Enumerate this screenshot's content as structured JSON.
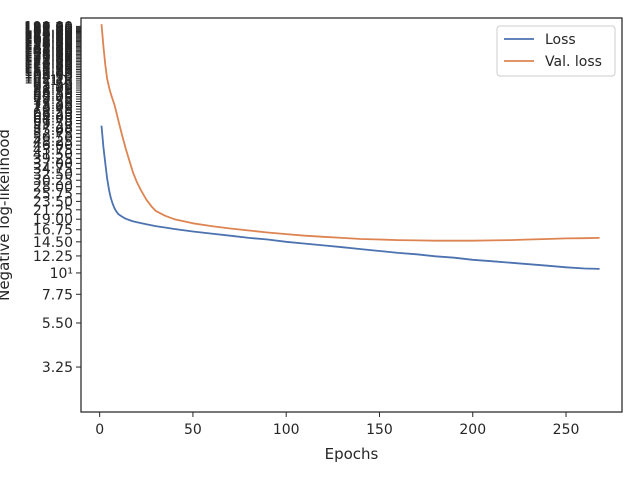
{
  "chart_data": {
    "type": "line",
    "title": "",
    "xlabel": "Epochs",
    "ylabel": "Negative log-likelihood",
    "xlim": [
      -10,
      280
    ],
    "ylim": [
      1.9,
      210
    ],
    "y_scale": "log",
    "x_ticks": [
      0,
      50,
      100,
      150,
      200,
      250
    ],
    "x_tick_labels": [
      "0",
      "50",
      "100",
      "150",
      "200",
      "250"
    ],
    "y_ticks": [
      3.25,
      5.5,
      7.75,
      10,
      12.25,
      14.5,
      16.75,
      19.0,
      21.25,
      23.5,
      25.75,
      28.0,
      30.25,
      32.5,
      34.75,
      37.0,
      39.25,
      41.5,
      43.75,
      46.0,
      48.25,
      50.5,
      52.75,
      55.0,
      57.25,
      59.5,
      61.75,
      64.0,
      66.25,
      68.5,
      70.75,
      73.0,
      75.25,
      77.5,
      79.75,
      82.0,
      84.25,
      86.5,
      88.75,
      91.0,
      93.25,
      95.5,
      97.75,
      100,
      102.25,
      104.5,
      106.75,
      109.0,
      111.25,
      113.5,
      115.75,
      118.0,
      120.25,
      122.5,
      124.75,
      127.0,
      129.25,
      131.5,
      133.75,
      136.0,
      138.25,
      140.5,
      142.75,
      145.0,
      147.25,
      149.5,
      151.75,
      154.0,
      156.25,
      158.5,
      160.75,
      163.0,
      165.25,
      167.5,
      169.75,
      172.0,
      174.25,
      176.5,
      178.75,
      181.0,
      183.25,
      185.5,
      187.75,
      190.0
    ],
    "y_tick_labels": [
      "3.25",
      "5.50",
      "7.75",
      "10¹",
      "12.25",
      "14.50",
      "16.75",
      "19.00",
      "21.25",
      "23.50",
      "25.75",
      "28.00",
      "30.25",
      "32.50",
      "34.75",
      "37.00",
      "39.25",
      "41.50",
      "43.75",
      "46.00",
      "48.25",
      "50.50",
      "52.75",
      "55.00",
      "57.25",
      "59.50",
      "61.75",
      "64.00",
      "66.25",
      "68.50",
      "70.75",
      "73.00",
      "75.25",
      "77.50",
      "79.75",
      "82.00",
      "84.25",
      "86.50",
      "88.75",
      "91.00",
      "93.25",
      "95.50",
      "97.75",
      "10²",
      "102.25",
      "104.50",
      "106.75",
      "109.00",
      "111.25",
      "113.50",
      "115.75",
      "118.00",
      "120.25",
      "122.50",
      "124.75",
      "127.00",
      "129.25",
      "131.50",
      "133.75",
      "136.00",
      "138.25",
      "140.50",
      "142.75",
      "145.00",
      "147.25",
      "149.50",
      "151.75",
      "154.00",
      "156.25",
      "158.50",
      "160.75",
      "163.00",
      "165.25",
      "167.50",
      "169.75",
      "172.00",
      "174.25",
      "176.50",
      "178.75",
      "181.00",
      "183.25",
      "185.50",
      "187.75",
      "190.00"
    ],
    "legend_position": "top-right",
    "grid": false,
    "series": [
      {
        "name": "Loss",
        "color": "#4c72b0",
        "x": [
          1,
          2,
          3,
          4,
          5,
          6,
          7,
          8,
          9,
          10,
          12,
          14,
          16,
          18,
          20,
          25,
          30,
          35,
          40,
          50,
          60,
          70,
          80,
          90,
          100,
          110,
          120,
          130,
          140,
          150,
          160,
          170,
          180,
          190,
          200,
          210,
          220,
          230,
          240,
          250,
          260,
          268
        ],
        "y": [
          58,
          45,
          37,
          31,
          27,
          24.5,
          22.8,
          21.6,
          20.8,
          20.2,
          19.6,
          19.1,
          18.8,
          18.5,
          18.3,
          17.9,
          17.5,
          17.2,
          16.9,
          16.4,
          16.0,
          15.6,
          15.2,
          14.9,
          14.5,
          14.2,
          13.9,
          13.6,
          13.3,
          13.0,
          12.7,
          12.5,
          12.2,
          12.0,
          11.7,
          11.5,
          11.3,
          11.1,
          10.9,
          10.7,
          10.55,
          10.5
        ]
      },
      {
        "name": "Val. loss",
        "color": "#dd8452",
        "x": [
          1,
          2,
          3,
          4,
          5,
          6,
          8,
          10,
          12,
          14,
          16,
          18,
          20,
          22,
          25,
          28,
          30,
          35,
          40,
          50,
          60,
          70,
          80,
          90,
          100,
          110,
          120,
          130,
          140,
          150,
          160,
          170,
          180,
          190,
          200,
          210,
          220,
          230,
          240,
          250,
          260,
          268
        ],
        "y": [
          195,
          150,
          120,
          102,
          92,
          85,
          74,
          62,
          52,
          44,
          38,
          33,
          29.5,
          27,
          24,
          22,
          21,
          19.8,
          19.0,
          18.1,
          17.5,
          17.0,
          16.6,
          16.2,
          15.9,
          15.6,
          15.4,
          15.2,
          15.0,
          14.9,
          14.8,
          14.75,
          14.7,
          14.7,
          14.7,
          14.75,
          14.8,
          14.9,
          15.0,
          15.1,
          15.15,
          15.2
        ]
      }
    ]
  }
}
